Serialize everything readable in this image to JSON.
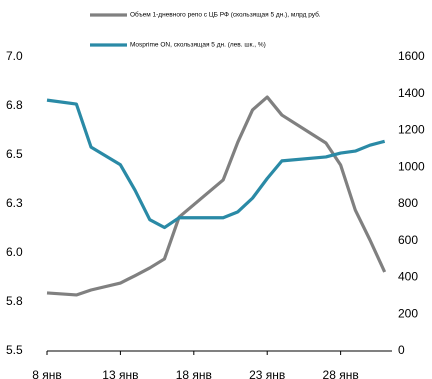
{
  "chart_data": {
    "type": "line",
    "x": [
      8,
      10,
      11,
      13,
      14,
      15,
      16,
      17,
      20,
      21,
      22,
      23,
      24,
      27,
      28,
      29,
      30,
      31
    ],
    "xlim": [
      8,
      31.5
    ],
    "xticks": [
      {
        "value": 8,
        "label": "8 янв"
      },
      {
        "value": 13,
        "label": "13 янв"
      },
      {
        "value": 18,
        "label": "18 янв"
      },
      {
        "value": 23,
        "label": "23 янв"
      },
      {
        "value": 28,
        "label": "28 янв"
      }
    ],
    "ylim": [
      5.5,
      7.0
    ],
    "yticks": [
      5.5,
      {
        "value": 5.75,
        "label": "5.8"
      },
      {
        "value": 6.0,
        "label": "6.0"
      },
      {
        "value": 6.25,
        "label": "6.3"
      },
      6.5,
      {
        "value": 6.75,
        "label": "6.8"
      },
      {
        "value": 7.0,
        "label": "7.0"
      }
    ],
    "y2lim": [
      0,
      1600
    ],
    "y2ticks": [
      0,
      200,
      400,
      600,
      800,
      1000,
      1200,
      1400,
      1600
    ],
    "series": [
      {
        "name": "Объем 1-дневного репо с ЦБ РФ (скользящая 5 дн.), млрд руб.",
        "color": "#808080",
        "axis": "y2",
        "values": [
          316,
          305,
          332,
          370,
          410,
          452,
          501,
          729,
          931,
          1137,
          1312,
          1382,
          1284,
          1132,
          1012,
          767,
          604,
          430
        ]
      },
      {
        "name": "Mosprime ON, скользящая 5 дн. (лев. шк., %)",
        "color": "#2a8aa6",
        "values": [
          6.78,
          6.76,
          6.54,
          6.45,
          6.32,
          6.17,
          6.13,
          6.18,
          6.18,
          6.21,
          6.28,
          6.38,
          6.47,
          6.49,
          6.51,
          6.52,
          6.55,
          6.57
        ]
      }
    ]
  }
}
